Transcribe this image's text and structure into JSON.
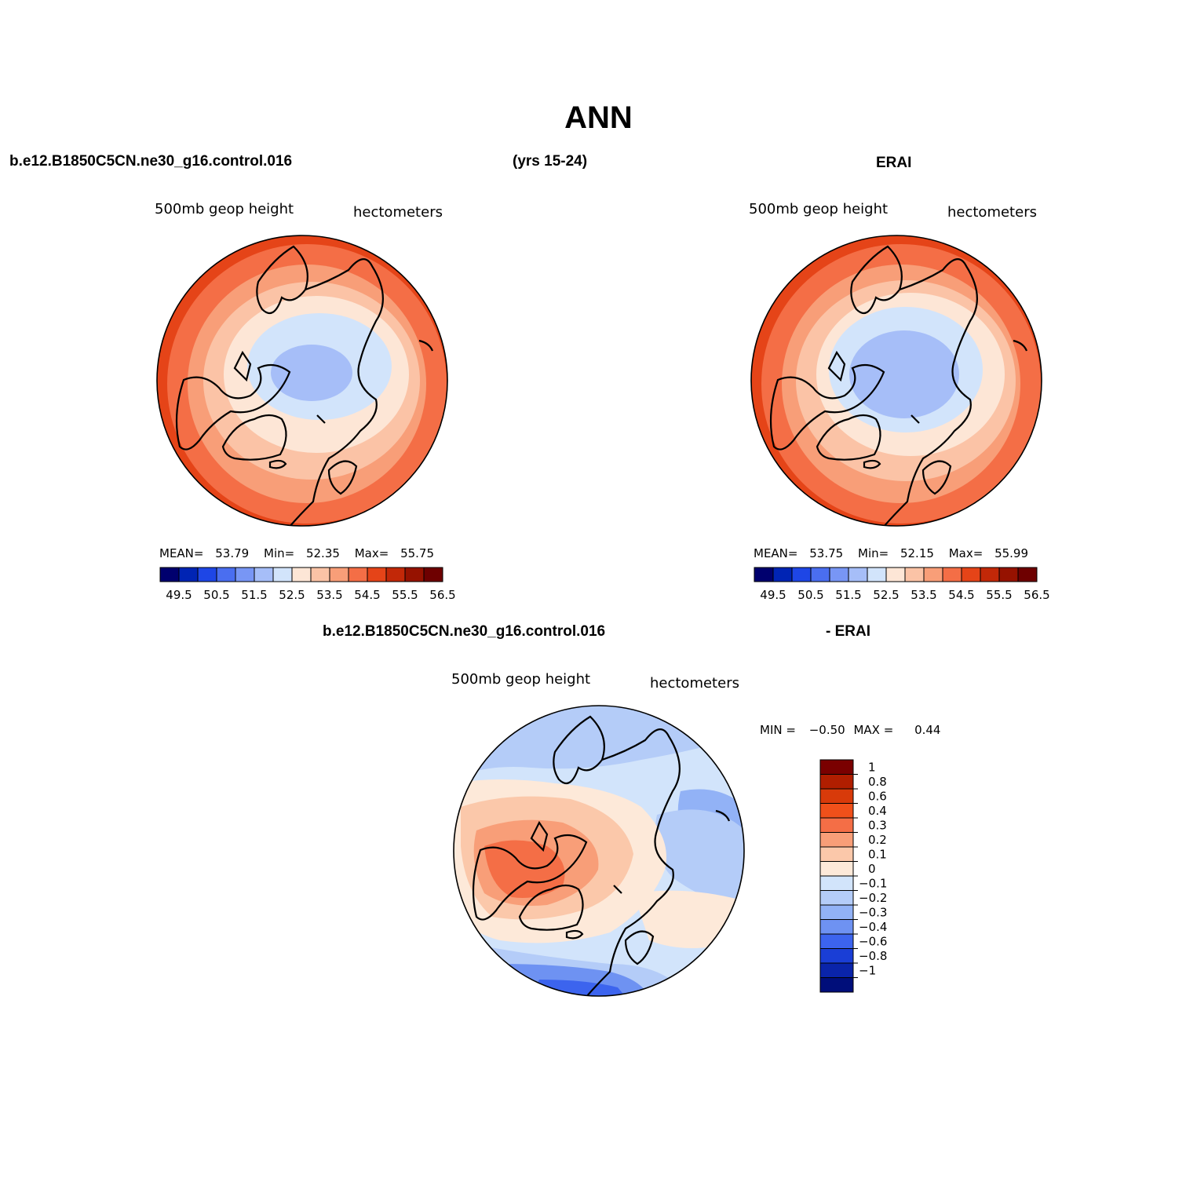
{
  "title": "ANN",
  "panels": {
    "model": {
      "case_name": "b.e12.B1850C5CN.ne30_g16.control.016",
      "years": "(yrs 15-24)",
      "variable": "500mb geop height",
      "units": "hectometers",
      "stats": {
        "mean_label": "MEAN=",
        "mean": "53.79",
        "min_label": "Min=",
        "min": "52.35",
        "max_label": "Max=",
        "max": "55.75"
      }
    },
    "obs": {
      "case_name": "ERAI",
      "variable": "500mb geop height",
      "units": "hectometers",
      "stats": {
        "mean_label": "MEAN=",
        "mean": "53.75",
        "min_label": "Min=",
        "min": "52.15",
        "max_label": "Max=",
        "max": "55.99"
      }
    },
    "diff": {
      "case_name": "b.e12.B1850C5CN.ne30_g16.control.016",
      "suffix": "- ERAI",
      "variable": "500mb geop height",
      "units": "hectometers",
      "stats": {
        "min_label": "MIN =",
        "min": "−0.50",
        "max_label": "MAX =",
        "max": "0.44"
      }
    }
  },
  "colorbars": {
    "absolute": {
      "tick_labels": [
        "49.5",
        "50.5",
        "51.5",
        "52.5",
        "53.5",
        "54.5",
        "55.5",
        "56.5"
      ],
      "colors": [
        "#00006e",
        "#0024b4",
        "#1e46e6",
        "#4a6ef0",
        "#7896f5",
        "#a6bef8",
        "#d2e4fb",
        "#fde6d6",
        "#fbc3a6",
        "#f89e78",
        "#f46e46",
        "#e54418",
        "#c22808",
        "#961200",
        "#6e0000"
      ]
    },
    "difference": {
      "tick_labels": [
        "1",
        "0.8",
        "0.6",
        "0.4",
        "0.3",
        "0.2",
        "0.1",
        "0",
        "−0.1",
        "−0.2",
        "−0.3",
        "−0.4",
        "−0.6",
        "−0.8",
        "−1"
      ],
      "colors": [
        "#7a0000",
        "#b01e00",
        "#d83a0a",
        "#f0501a",
        "#f46e46",
        "#f89e78",
        "#fbc8aa",
        "#fde9d9",
        "#d2e4fb",
        "#b4ccf8",
        "#92b2f6",
        "#6e92f2",
        "#3c64ee",
        "#1a3ed6",
        "#0a24aa",
        "#000e7a"
      ]
    }
  }
}
